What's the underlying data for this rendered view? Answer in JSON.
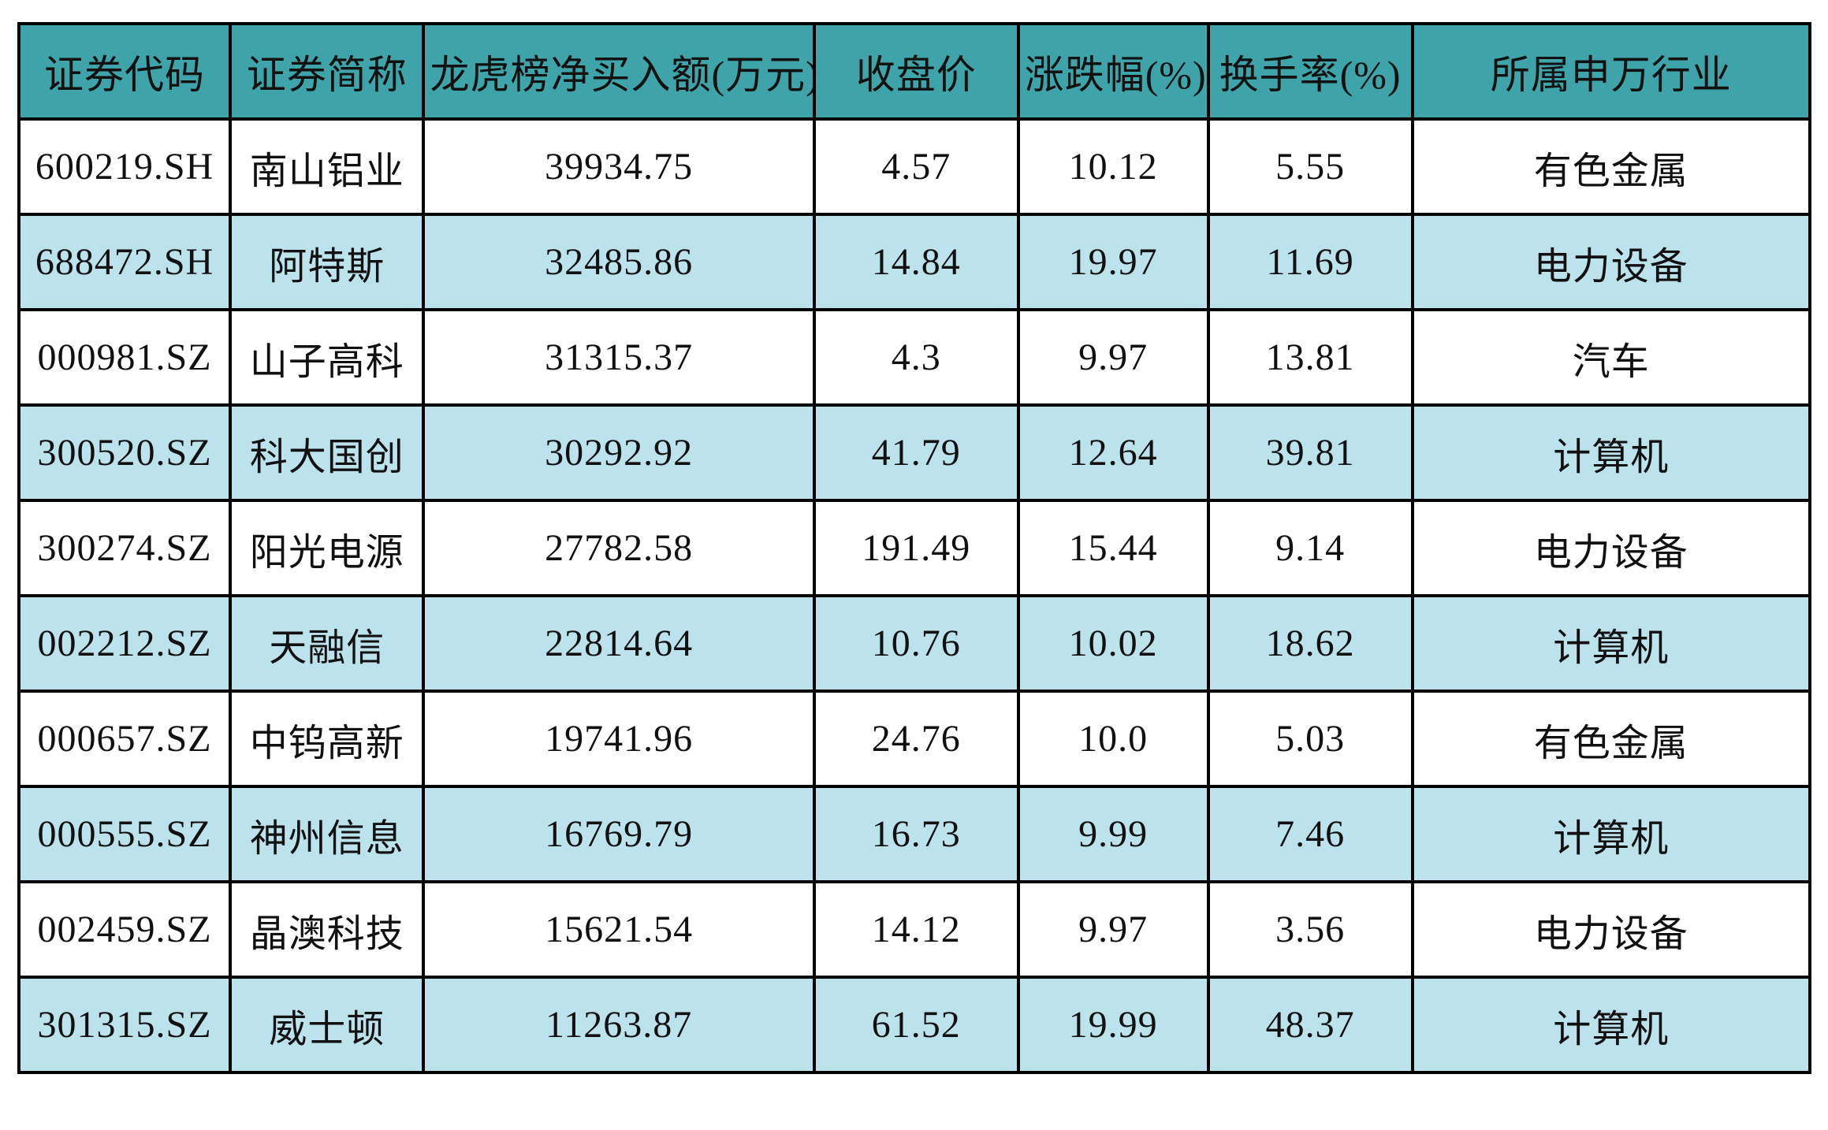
{
  "chart_data": {
    "type": "table",
    "columns": [
      "证券代码",
      "证券简称",
      "龙虎榜净买入额(万元)",
      "收盘价",
      "涨跌幅(%)",
      "换手率(%)",
      "所属申万行业"
    ],
    "rows": [
      [
        "600219.SH",
        "南山铝业",
        "39934.75",
        "4.57",
        "10.12",
        "5.55",
        "有色金属"
      ],
      [
        "688472.SH",
        "阿特斯",
        "32485.86",
        "14.84",
        "19.97",
        "11.69",
        "电力设备"
      ],
      [
        "000981.SZ",
        "山子高科",
        "31315.37",
        "4.3",
        "9.97",
        "13.81",
        "汽车"
      ],
      [
        "300520.SZ",
        "科大国创",
        "30292.92",
        "41.79",
        "12.64",
        "39.81",
        "计算机"
      ],
      [
        "300274.SZ",
        "阳光电源",
        "27782.58",
        "191.49",
        "15.44",
        "9.14",
        "电力设备"
      ],
      [
        "002212.SZ",
        "天融信",
        "22814.64",
        "10.76",
        "10.02",
        "18.62",
        "计算机"
      ],
      [
        "000657.SZ",
        "中钨高新",
        "19741.96",
        "24.76",
        "10.0",
        "5.03",
        "有色金属"
      ],
      [
        "000555.SZ",
        "神州信息",
        "16769.79",
        "16.73",
        "9.99",
        "7.46",
        "计算机"
      ],
      [
        "002459.SZ",
        "晶澳科技",
        "15621.54",
        "14.12",
        "9.97",
        "3.56",
        "电力设备"
      ],
      [
        "301315.SZ",
        "威士顿",
        "11263.87",
        "61.52",
        "19.99",
        "48.37",
        "计算机"
      ]
    ]
  },
  "colors": {
    "header_bg": "#3EA4AA",
    "row_alt_bg": "#BCE2EC",
    "row_bg": "#FFFFFF",
    "border": "#000000",
    "text": "#111111"
  }
}
